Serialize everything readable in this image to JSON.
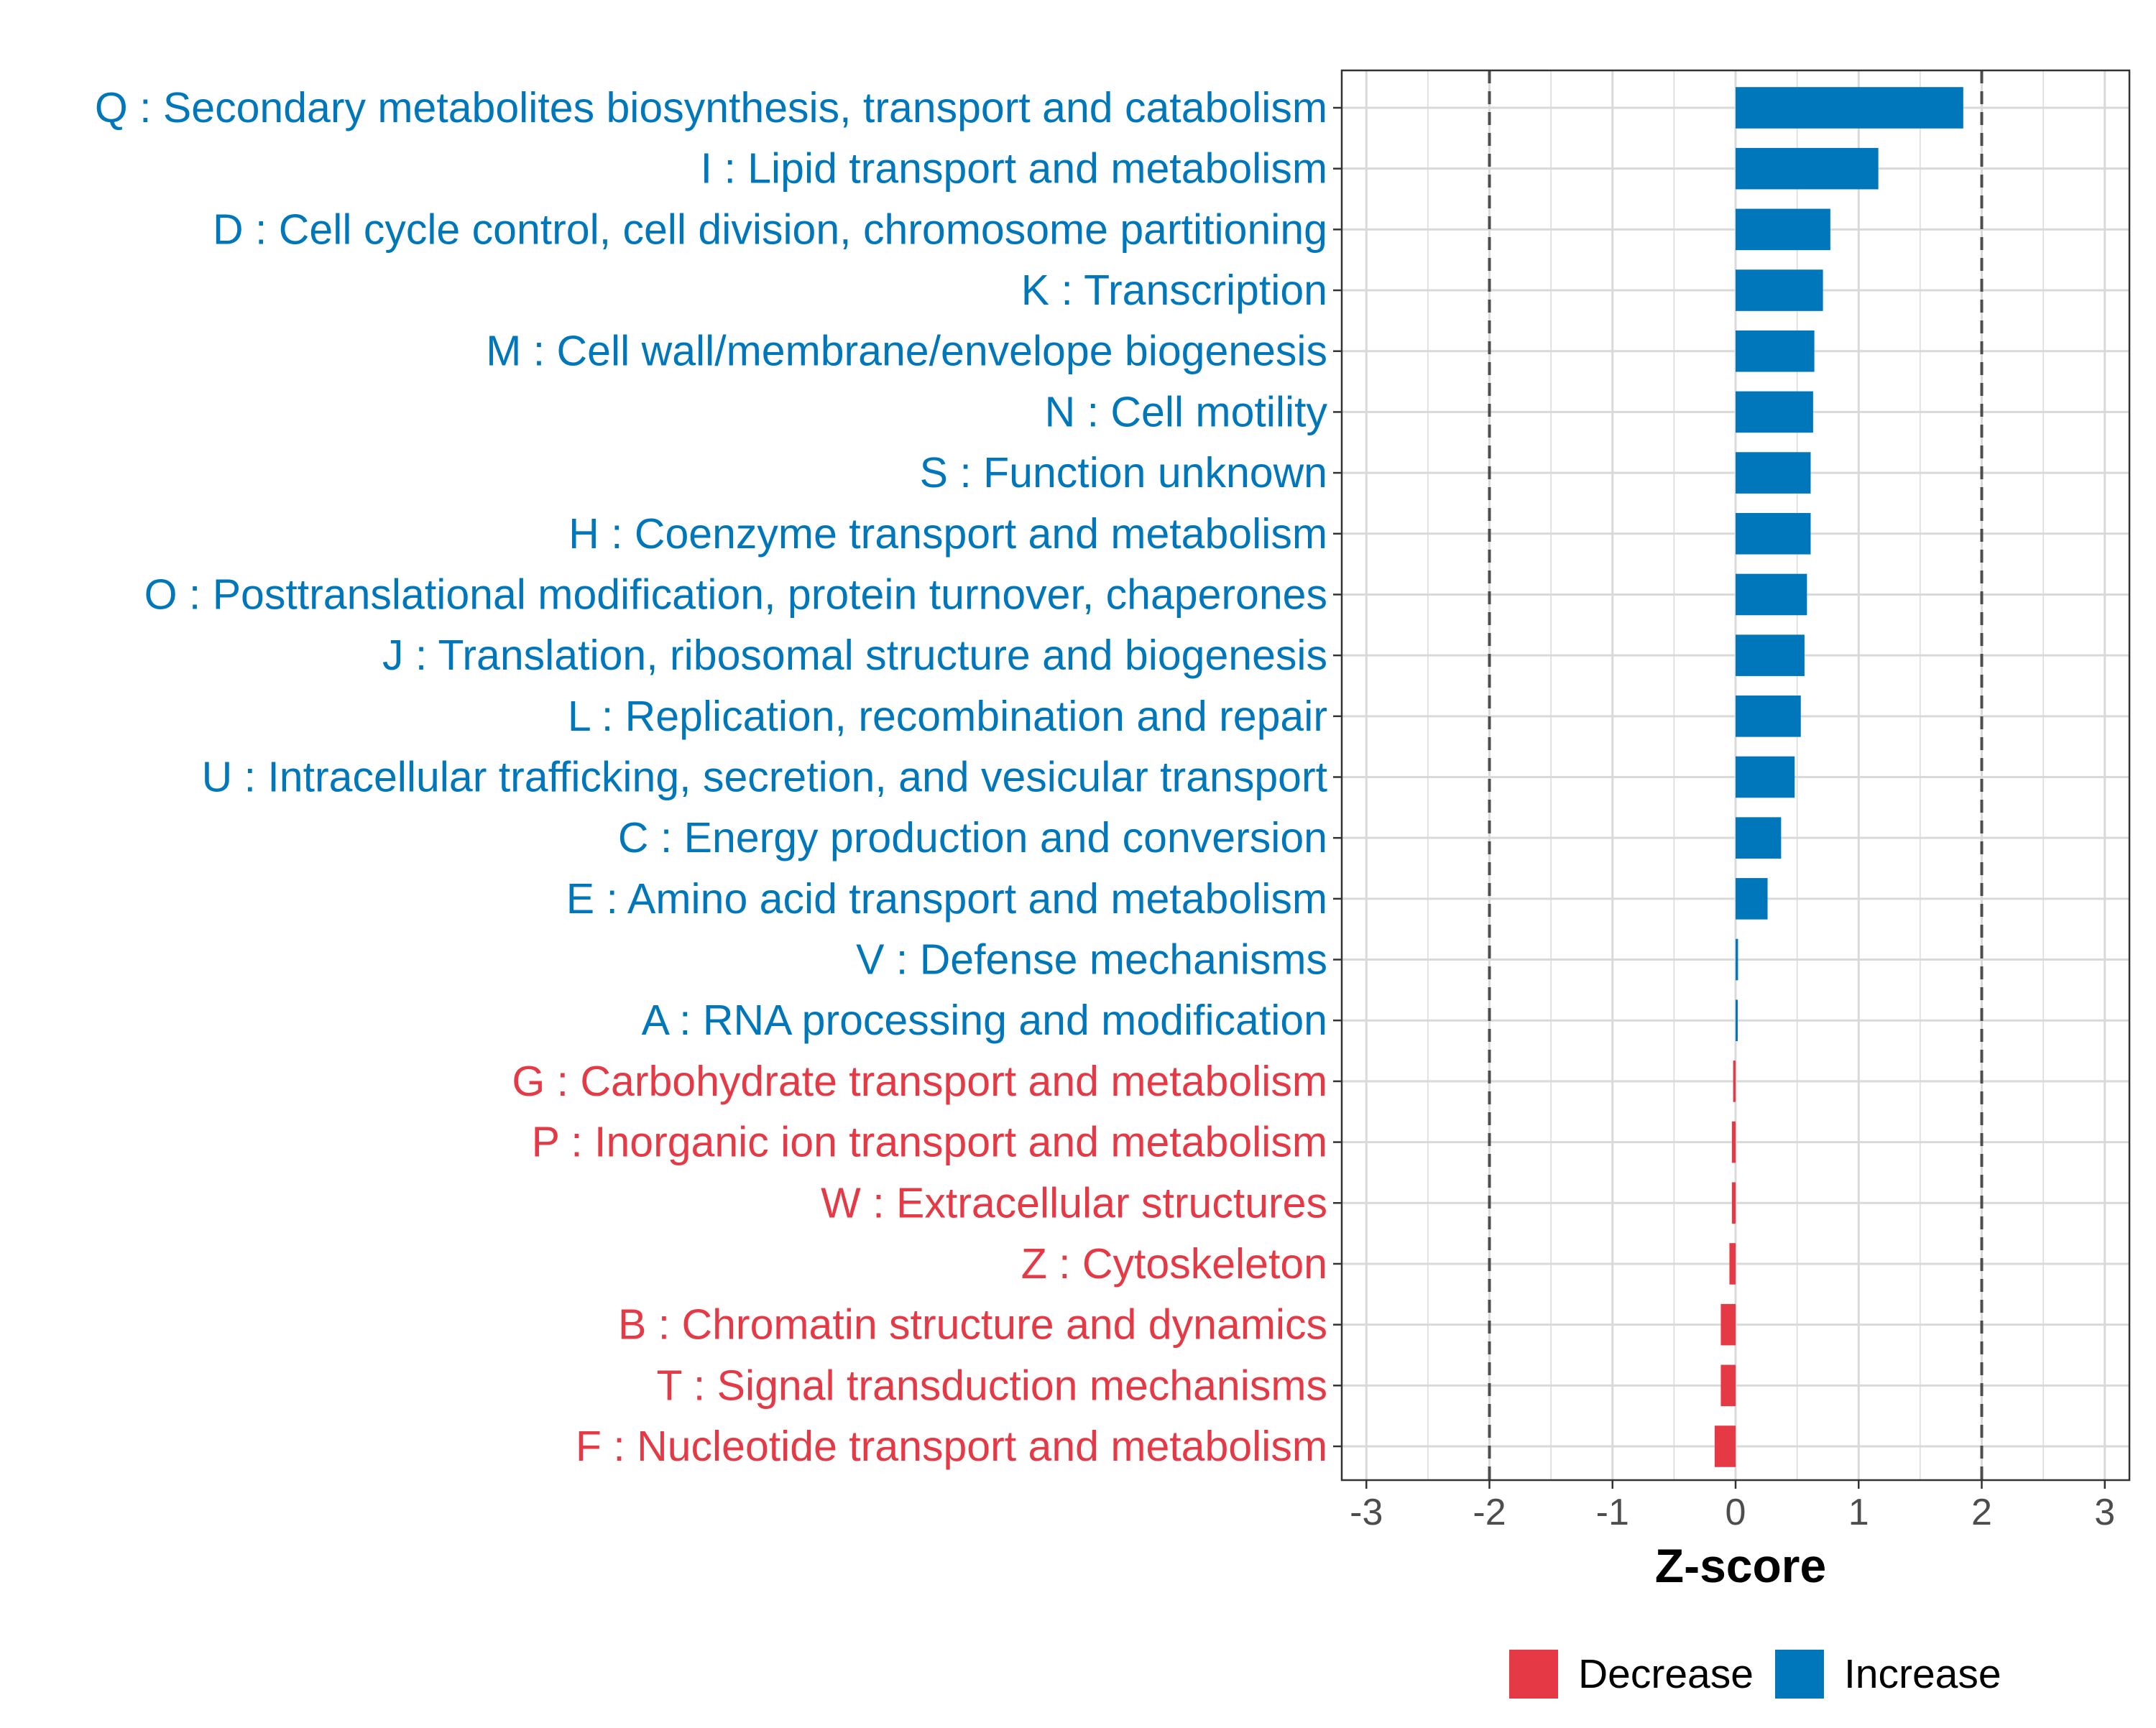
{
  "chart_data": {
    "type": "bar",
    "orientation": "horizontal",
    "categories": [
      "Q : Secondary metabolites biosynthesis, transport and catabolism",
      "I : Lipid transport and metabolism",
      "D : Cell cycle control, cell division, chromosome partitioning",
      "K : Transcription",
      "M : Cell wall/membrane/envelope biogenesis",
      "N : Cell motility",
      "S : Function unknown",
      "H : Coenzyme transport and metabolism",
      "O : Posttranslational modification, protein turnover, chaperones",
      "J : Translation, ribosomal structure and biogenesis",
      "L : Replication, recombination and repair",
      "U : Intracellular trafficking, secretion, and vesicular transport",
      "C : Energy production and conversion",
      "E : Amino acid transport and metabolism",
      "V : Defense mechanisms",
      "A : RNA processing and modification",
      "G : Carbohydrate transport and metabolism",
      "P : Inorganic ion transport and metabolism",
      "W : Extracellular structures",
      "Z : Cytoskeleton",
      "B : Chromatin structure and dynamics",
      "T : Signal transduction mechanisms",
      "F : Nucleotide transport and metabolism"
    ],
    "values": [
      1.85,
      1.16,
      0.77,
      0.71,
      0.64,
      0.63,
      0.61,
      0.61,
      0.58,
      0.56,
      0.53,
      0.48,
      0.37,
      0.26,
      0.02,
      0.01,
      -0.02,
      -0.03,
      -0.03,
      -0.05,
      -0.12,
      -0.12,
      -0.17
    ],
    "groups": [
      "Increase",
      "Increase",
      "Increase",
      "Increase",
      "Increase",
      "Increase",
      "Increase",
      "Increase",
      "Increase",
      "Increase",
      "Increase",
      "Increase",
      "Increase",
      "Increase",
      "Increase",
      "Increase",
      "Decrease",
      "Decrease",
      "Decrease",
      "Decrease",
      "Decrease",
      "Decrease",
      "Decrease"
    ],
    "title": "",
    "xlabel": "Z-score",
    "ylabel": "",
    "xlim": [
      -3.2,
      3.2
    ],
    "xticks": [
      -3,
      -2,
      -1,
      0,
      1,
      2,
      3
    ],
    "xtick_labels": [
      "-3",
      "-2",
      "-1",
      "0",
      "1",
      "2",
      "3"
    ],
    "reference_lines": [
      -2,
      2
    ],
    "grid": true,
    "legend": {
      "position": "bottom",
      "entries": [
        {
          "label": "Decrease",
          "color": "#E63946"
        },
        {
          "label": "Increase",
          "color": "#0077BB"
        }
      ]
    }
  },
  "colors": {
    "Decrease": "#E63946",
    "Increase": "#0077BB",
    "grid": "#D9D9D9",
    "reference_line": "#4D4D4D",
    "axis": "#333333"
  }
}
